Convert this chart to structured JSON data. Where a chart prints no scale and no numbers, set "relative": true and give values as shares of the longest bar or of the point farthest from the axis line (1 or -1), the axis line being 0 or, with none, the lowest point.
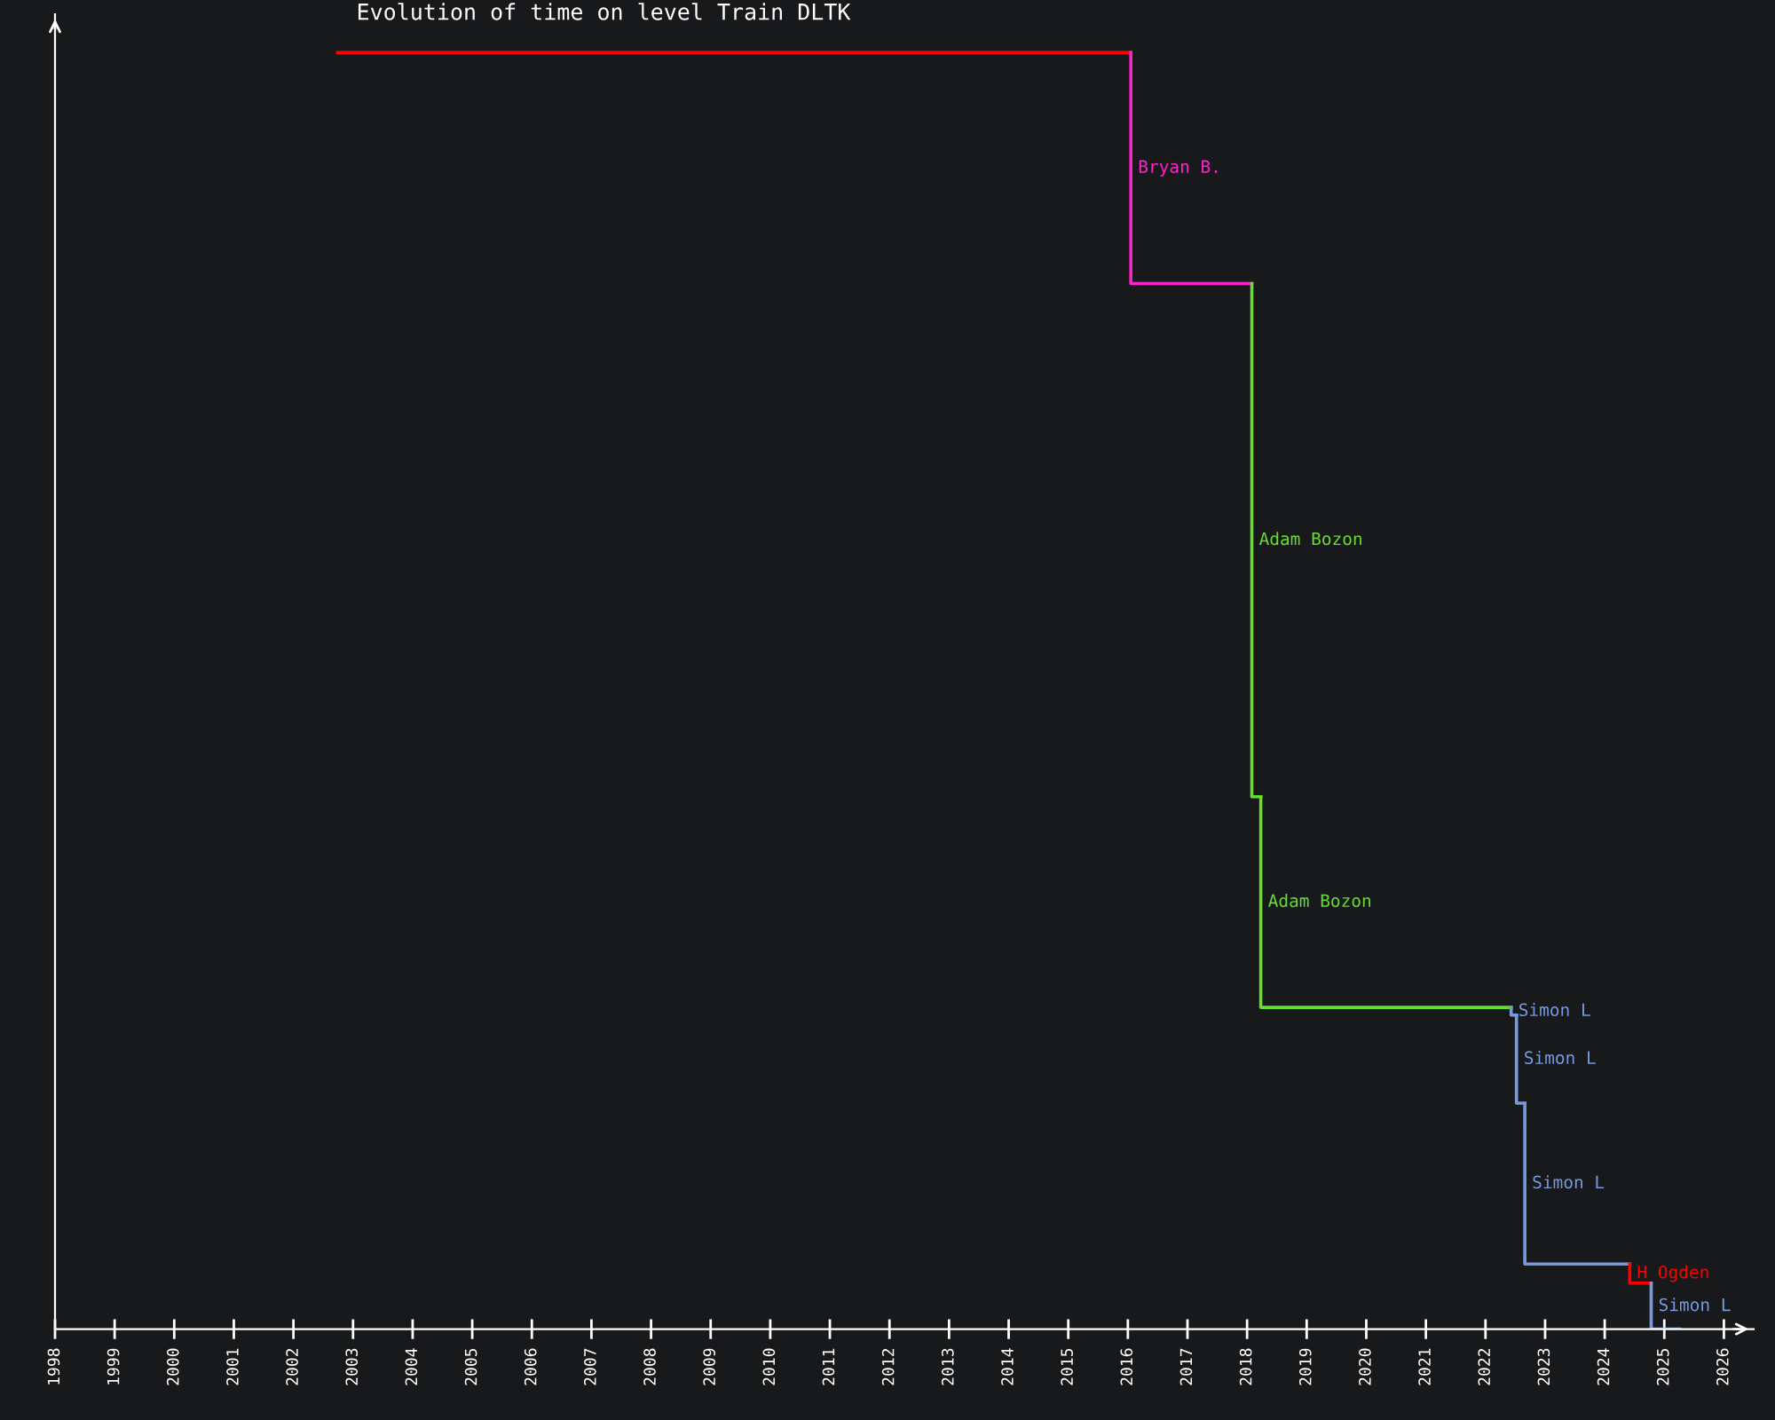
{
  "chart_data": {
    "type": "line",
    "title": "Evolution of time on level Train DLTK",
    "relative": true,
    "xlim": [
      1998,
      2026.5
    ],
    "xticks": [
      1998,
      1999,
      2000,
      2001,
      2002,
      2003,
      2004,
      2005,
      2006,
      2007,
      2008,
      2009,
      2010,
      2011,
      2012,
      2013,
      2014,
      2015,
      2016,
      2017,
      2018,
      2019,
      2020,
      2021,
      2022,
      2023,
      2024,
      2025,
      2026
    ],
    "tick_labels": "x",
    "grid": false,
    "legend": false,
    "marker": "none",
    "line_style": "solid",
    "series": [
      {
        "color": "#ff0000",
        "x": [
          2002.74,
          2016.05
        ],
        "values": [
          1,
          1
        ]
      },
      {
        "name": "Bryan B.",
        "color": "#ff22cc",
        "x": [
          2016.05,
          2016.05,
          2018.08
        ],
        "values": [
          1,
          0.819,
          0.819
        ]
      },
      {
        "name": "Adam Bozon",
        "color": "#66dd33",
        "x": [
          2018.08,
          2018.08,
          2018.23
        ],
        "values": [
          0.819,
          0.417,
          0.417
        ]
      },
      {
        "name": "Adam Bozon",
        "color": "#66dd33",
        "x": [
          2018.23,
          2018.23,
          2022.43
        ],
        "values": [
          0.417,
          0.252,
          0.252
        ]
      },
      {
        "name": "Simon L",
        "color": "#7799dd",
        "x": [
          2022.43,
          2022.43,
          2022.52
        ],
        "values": [
          0.252,
          0.246,
          0.246
        ]
      },
      {
        "name": "Simon L",
        "color": "#7799dd",
        "x": [
          2022.52,
          2022.52,
          2022.66
        ],
        "values": [
          0.246,
          0.177,
          0.177
        ]
      },
      {
        "name": "Simon L",
        "color": "#7799dd",
        "x": [
          2022.66,
          2022.66,
          2024.42
        ],
        "values": [
          0.177,
          0.051,
          0.051
        ]
      },
      {
        "name": "H Ogden",
        "color": "#ff0000",
        "x": [
          2024.42,
          2024.42,
          2024.78
        ],
        "values": [
          0.051,
          0.036,
          0.036
        ]
      },
      {
        "name": "Simon L",
        "color": "#7799dd",
        "x": [
          2024.78,
          2024.78,
          2025.26
        ],
        "values": [
          0.036,
          0,
          0
        ]
      }
    ]
  }
}
